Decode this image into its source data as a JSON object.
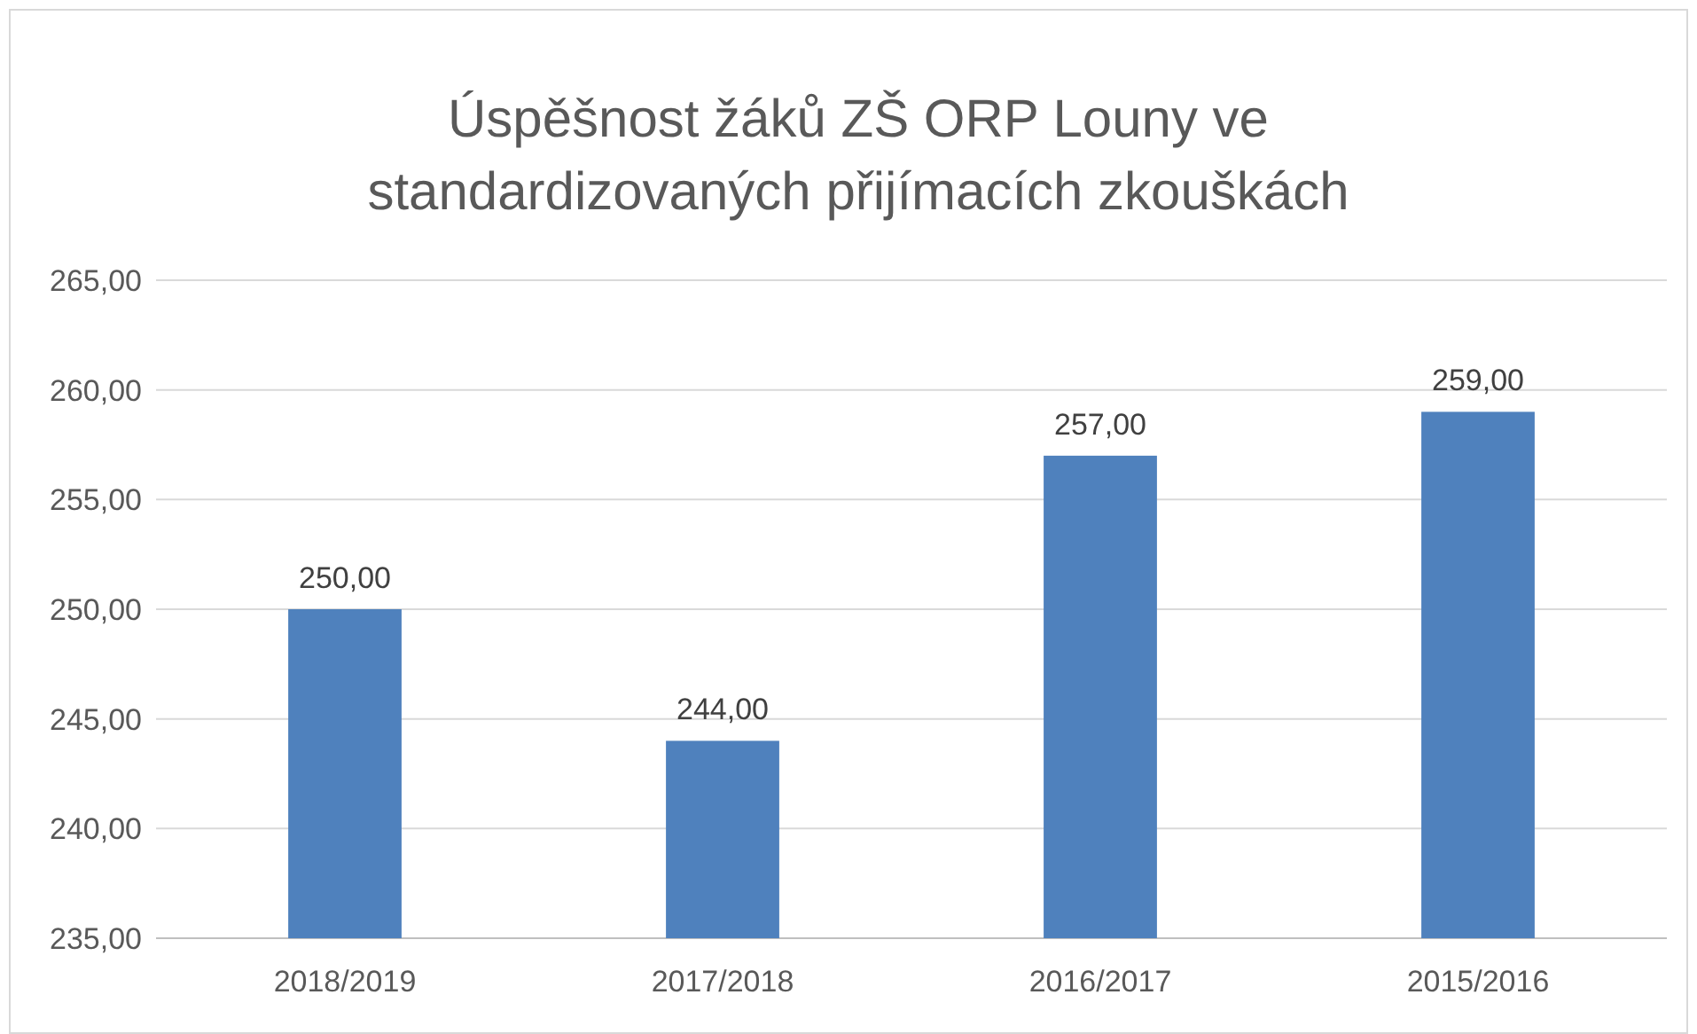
{
  "chart_data": {
    "type": "bar",
    "title": "Úspěšnost žáků ZŠ ORP Louny ve standardizovaných přijímacích zkouškách",
    "categories": [
      "2018/2019",
      "2017/2018",
      "2016/2017",
      "2015/2016"
    ],
    "values": [
      250,
      244,
      257,
      259
    ],
    "value_labels": [
      "250,00",
      "244,00",
      "257,00",
      "259,00"
    ],
    "color": "#4f81bd",
    "ylim": [
      235,
      265
    ],
    "yticks": [
      {
        "value": 235,
        "label": "235,00"
      },
      {
        "value": 240,
        "label": "240,00"
      },
      {
        "value": 245,
        "label": "245,00"
      },
      {
        "value": 250,
        "label": "250,00"
      },
      {
        "value": 255,
        "label": "255,00"
      },
      {
        "value": 260,
        "label": "260,00"
      },
      {
        "value": 265,
        "label": "265,00"
      }
    ],
    "grid": "y"
  }
}
